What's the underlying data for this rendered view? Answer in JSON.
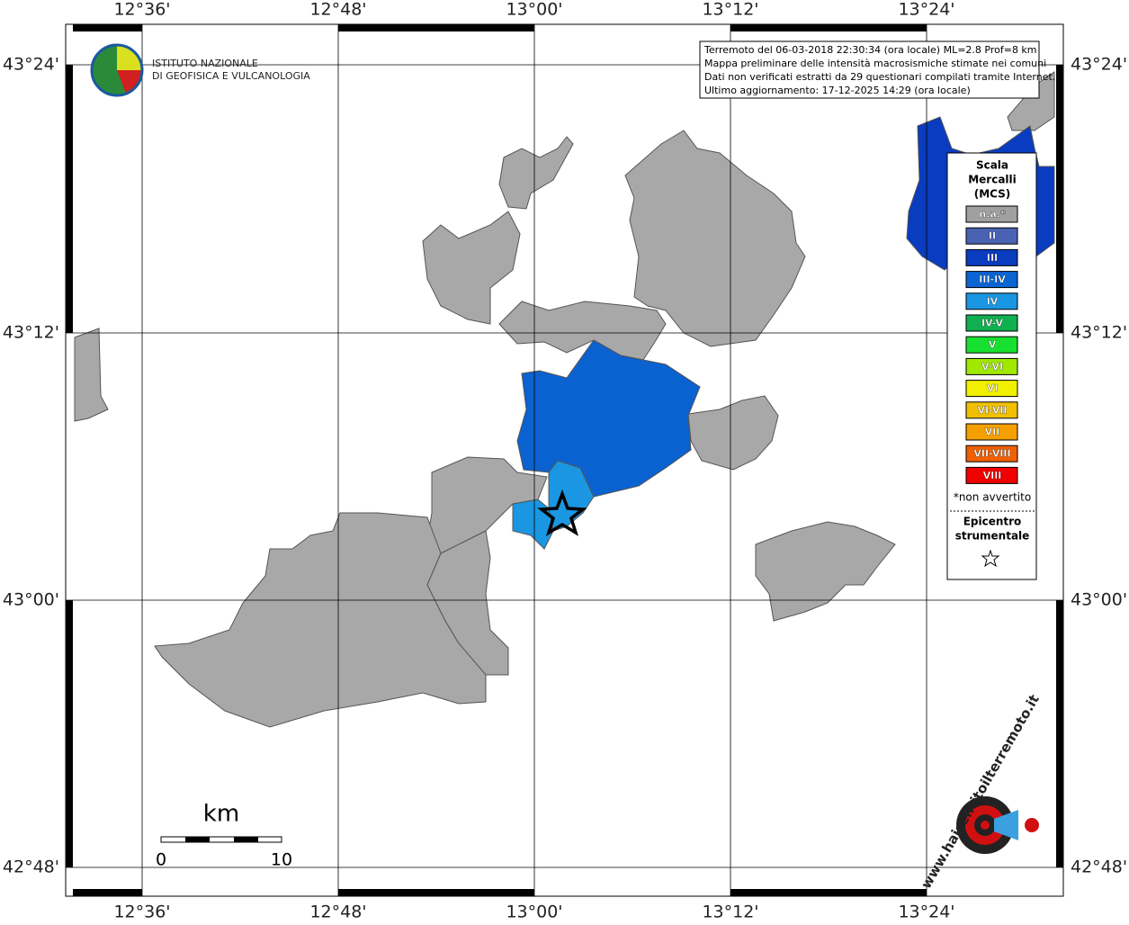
{
  "map": {
    "lon_labels": [
      "12°36'",
      "12°48'",
      "13°00'",
      "13°12'",
      "13°24'"
    ],
    "lat_labels": [
      "43°24'",
      "43°12'",
      "43°00'",
      "42°48'"
    ]
  },
  "info": [
    "Terremoto del 06-03-2018 22:30:34 (ora locale) ML=2.8 Prof=8 km",
    "Mappa preliminare delle intensità macrosismiche stimate nei comuni",
    "Dati non verificati estratti da 29 questionari compilati tramite Internet.",
    "Ultimo aggiornamento: 17-12-2025 14:29 (ora locale)"
  ],
  "institute": [
    "ISTITUTO NAZIONALE",
    "DI GEOFISICA E VULCANOLOGIA"
  ],
  "legend": {
    "title": [
      "Scala",
      "Mercalli",
      "(MCS)"
    ],
    "items": [
      {
        "label": "n.a.*",
        "color": "#a0a0a0"
      },
      {
        "label": "II",
        "color": "#4a62b4"
      },
      {
        "label": "III",
        "color": "#0a3cc0"
      },
      {
        "label": "III-IV",
        "color": "#0a64d2"
      },
      {
        "label": "IV",
        "color": "#1a96e2"
      },
      {
        "label": "IV-V",
        "color": "#10b050"
      },
      {
        "label": "V",
        "color": "#18e030"
      },
      {
        "label": "V-VI",
        "color": "#a0e800"
      },
      {
        "label": "VI",
        "color": "#f0f000"
      },
      {
        "label": "VI-VII",
        "color": "#f0c000"
      },
      {
        "label": "VII",
        "color": "#f5a000"
      },
      {
        "label": "VII-VIII",
        "color": "#f06000"
      },
      {
        "label": "VIII",
        "color": "#f00000"
      }
    ],
    "note": "*non avvertito",
    "epicenter": [
      "Epicentro",
      "strumentale"
    ]
  },
  "scale_bar": {
    "unit": "km",
    "labels": [
      "0",
      "10"
    ]
  },
  "site_logo": "www.haisentitoilterremoto.it"
}
